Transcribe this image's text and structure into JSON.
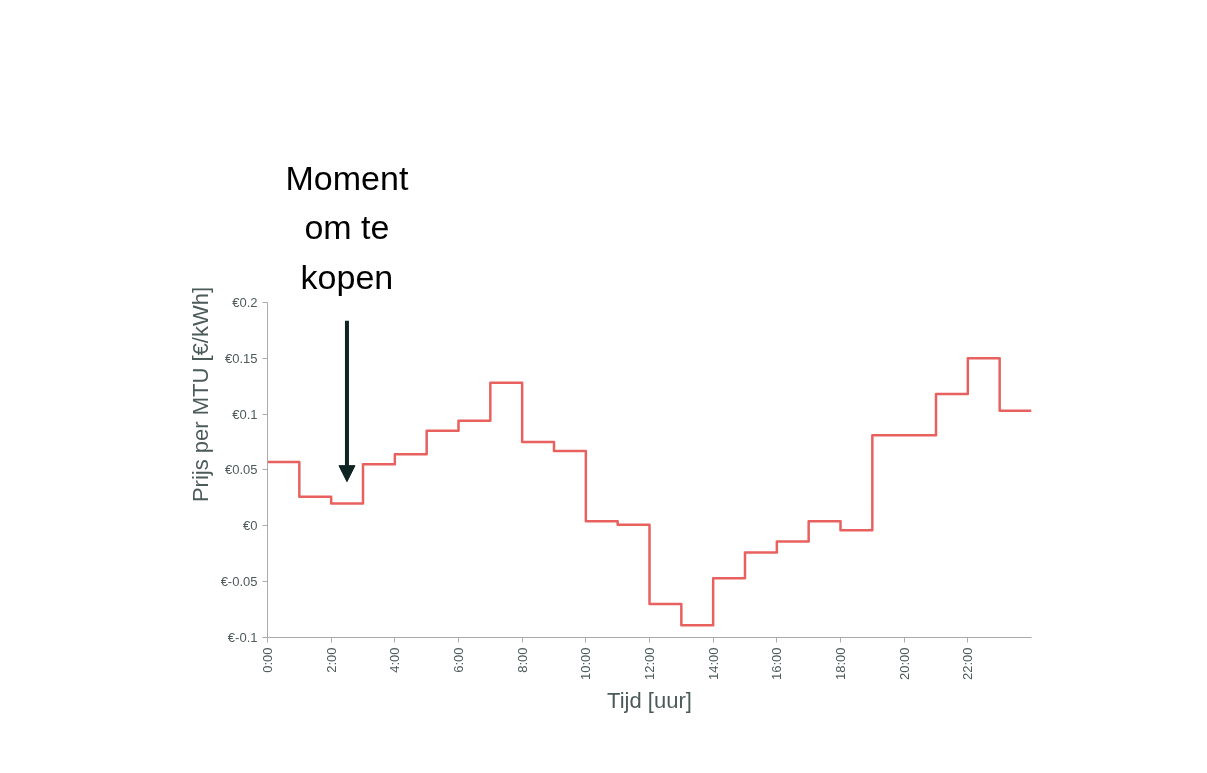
{
  "chart_data": {
    "type": "step",
    "xlabel": "Tijd [uur]",
    "ylabel": "Prijs per MTU [€/kWh]",
    "x": [
      0,
      1,
      2,
      3,
      4,
      5,
      6,
      7,
      8,
      9,
      10,
      11,
      12,
      13,
      14,
      15,
      16,
      17,
      18,
      19,
      20,
      21,
      22,
      23,
      24
    ],
    "series": [
      {
        "color": "#e8615f",
        "values": [
          0.057,
          0.026,
          0.02,
          0.055,
          0.064,
          0.085,
          0.094,
          0.128,
          0.075,
          0.067,
          0.004,
          0.001,
          -0.07,
          -0.089,
          -0.047,
          -0.024,
          -0.014,
          0.004,
          -0.004,
          0.081,
          0.081,
          0.118,
          0.15,
          0.103,
          0.103
        ]
      }
    ],
    "xlim": [
      0,
      24
    ],
    "ylim": [
      -0.1,
      0.2
    ],
    "xticks": [
      {
        "value": 0,
        "label": "0:00"
      },
      {
        "value": 2,
        "label": "2:00"
      },
      {
        "value": 4,
        "label": "4:00"
      },
      {
        "value": 6,
        "label": "6:00"
      },
      {
        "value": 8,
        "label": "8:00"
      },
      {
        "value": 10,
        "label": "10:00"
      },
      {
        "value": 12,
        "label": "12:00"
      },
      {
        "value": 14,
        "label": "14:00"
      },
      {
        "value": 16,
        "label": "16:00"
      },
      {
        "value": 18,
        "label": "18:00"
      },
      {
        "value": 20,
        "label": "20:00"
      },
      {
        "value": 22,
        "label": "22:00"
      }
    ],
    "yticks": [
      {
        "value": -0.1,
        "label": "€-0.1"
      },
      {
        "value": -0.05,
        "label": "€-0.05"
      },
      {
        "value": 0,
        "label": "€0"
      },
      {
        "value": 0.05,
        "label": "€0.05"
      },
      {
        "value": 0.1,
        "label": "€0.1"
      },
      {
        "value": 0.15,
        "label": "€0.15"
      },
      {
        "value": 0.2,
        "label": "€0.2"
      }
    ],
    "grid": false,
    "annotations": [
      "Moment om te kopen"
    ]
  }
}
